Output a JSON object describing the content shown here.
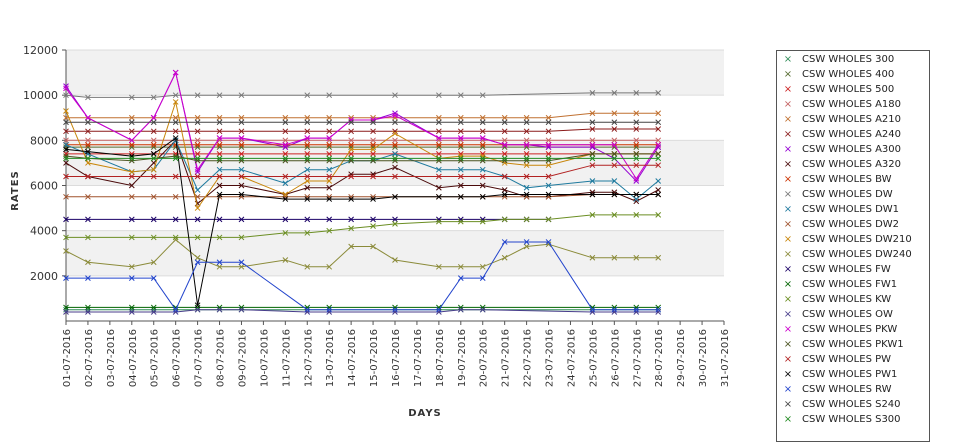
{
  "chart_data": {
    "type": "line",
    "xlabel": "DAYS",
    "ylabel": "RATES",
    "ylim": [
      0,
      12000
    ],
    "yticks": [
      2000,
      4000,
      6000,
      8000,
      10000,
      12000
    ],
    "categories": [
      "01-07-2016",
      "02-07-2016",
      "03-07-2016",
      "04-07-2016",
      "05-07-2016",
      "06-07-2016",
      "07-07-2016",
      "08-07-2016",
      "09-07-2016",
      "10-07-2016",
      "11-07-2016",
      "12-07-2016",
      "13-07-2016",
      "14-07-2016",
      "15-07-2016",
      "16-07-2016",
      "17-07-2016",
      "18-07-2016",
      "19-07-2016",
      "20-07-2016",
      "21-07-2016",
      "22-07-2016",
      "23-07-2016",
      "24-07-2016",
      "25-07-2016",
      "26-07-2016",
      "27-07-2016",
      "28-07-2016",
      "29-07-2016",
      "30-07-2016",
      "31-07-2016"
    ],
    "grid": "horizontal bands",
    "legend_position": "right",
    "series": [
      {
        "name": "CSW WHOLES 300",
        "color": "#2e8b57",
        "values": [
          500,
          500,
          null,
          500,
          500,
          500,
          500,
          500,
          500,
          null,
          null,
          500,
          500,
          null,
          null,
          500,
          null,
          500,
          500,
          500,
          null,
          null,
          null,
          null,
          500,
          500,
          500,
          500,
          null,
          null,
          null
        ]
      },
      {
        "name": "CSW WHOLES 400",
        "color": "#556b2f",
        "values": [
          7700,
          7700,
          null,
          7700,
          7700,
          7700,
          7700,
          7700,
          7700,
          null,
          7700,
          7700,
          7700,
          7700,
          7700,
          7700,
          null,
          7700,
          7700,
          7700,
          7700,
          7700,
          7700,
          null,
          7700,
          7700,
          7700,
          7700,
          null,
          null,
          null
        ]
      },
      {
        "name": "CSW WHOLES 500",
        "color": "#cc2222",
        "values": [
          7400,
          7400,
          null,
          7400,
          7400,
          7400,
          7400,
          7400,
          7400,
          null,
          7400,
          7400,
          7400,
          7400,
          7400,
          7400,
          null,
          7400,
          7400,
          7400,
          7400,
          7400,
          7400,
          null,
          7400,
          7400,
          7400,
          7400,
          null,
          null,
          null
        ]
      },
      {
        "name": "CSW WHOLES A180",
        "color": "#c46060",
        "values": [
          8000,
          8000,
          null,
          8000,
          8000,
          8000,
          8000,
          8000,
          8000,
          null,
          8000,
          8000,
          8000,
          8000,
          8000,
          8000,
          null,
          8000,
          8000,
          8000,
          8000,
          8000,
          8000,
          null,
          8000,
          8000,
          8000,
          8000,
          null,
          null,
          null
        ]
      },
      {
        "name": "CSW WHOLES A210",
        "color": "#c07030",
        "values": [
          9000,
          9000,
          null,
          9000,
          9000,
          9000,
          9000,
          9000,
          9000,
          null,
          9000,
          9000,
          9000,
          9000,
          9000,
          9000,
          null,
          9000,
          9000,
          9000,
          9000,
          9000,
          9000,
          null,
          9200,
          9200,
          9200,
          9200,
          null,
          null,
          null
        ]
      },
      {
        "name": "CSW WHOLES A240",
        "color": "#8b1a1a",
        "values": [
          8400,
          8400,
          null,
          8400,
          8400,
          8400,
          8400,
          8400,
          8400,
          null,
          8400,
          8400,
          8400,
          8400,
          8400,
          8400,
          null,
          8400,
          8400,
          8400,
          8400,
          8400,
          8400,
          null,
          8500,
          8500,
          8500,
          8500,
          null,
          null,
          null
        ]
      },
      {
        "name": "CSW WHOLES A300",
        "color": "#9400d3",
        "values": [
          10400,
          9000,
          null,
          8000,
          9000,
          11000,
          6600,
          8100,
          8100,
          null,
          7700,
          8100,
          8100,
          8900,
          8900,
          9200,
          null,
          8100,
          8100,
          8100,
          7800,
          7800,
          7700,
          null,
          7700,
          7200,
          6200,
          7700,
          null,
          null,
          null
        ]
      },
      {
        "name": "CSW WHOLES A320",
        "color": "#4a0a0a",
        "values": [
          7000,
          6400,
          null,
          6000,
          7000,
          8000,
          5200,
          6000,
          6000,
          null,
          5600,
          5900,
          5900,
          6500,
          6500,
          6800,
          null,
          5900,
          6000,
          6000,
          5800,
          5500,
          5500,
          null,
          5700,
          5700,
          5300,
          5800,
          null,
          null,
          null
        ]
      },
      {
        "name": "CSW WHOLES BW",
        "color": "#cc3300",
        "values": [
          7800,
          7800,
          null,
          7800,
          7800,
          7800,
          7800,
          7800,
          7800,
          null,
          7800,
          7800,
          7800,
          7800,
          7800,
          7800,
          null,
          7800,
          7800,
          7800,
          7800,
          7800,
          7800,
          null,
          7800,
          7800,
          7800,
          7800,
          null,
          null,
          null
        ]
      },
      {
        "name": "CSW WHOLES DW",
        "color": "#777777",
        "values": [
          10000,
          9900,
          null,
          9900,
          9900,
          10000,
          10000,
          10000,
          10000,
          null,
          null,
          10000,
          10000,
          null,
          null,
          10000,
          null,
          10000,
          10000,
          10000,
          null,
          null,
          null,
          null,
          10100,
          10100,
          10100,
          10100,
          null,
          null,
          null
        ]
      },
      {
        "name": "CSW WHOLES DW1",
        "color": "#1f7a9e",
        "values": [
          7800,
          7400,
          null,
          6600,
          6700,
          8000,
          5800,
          6700,
          6700,
          null,
          6100,
          6700,
          6700,
          7100,
          7100,
          7400,
          null,
          6700,
          6700,
          6700,
          6400,
          5900,
          6000,
          null,
          6200,
          6200,
          5400,
          6200,
          null,
          null,
          null
        ]
      },
      {
        "name": "CSW WHOLES DW2",
        "color": "#a0522d",
        "values": [
          5500,
          5500,
          null,
          5500,
          5500,
          5500,
          5500,
          5500,
          5500,
          null,
          5500,
          5500,
          5500,
          5500,
          5500,
          5500,
          null,
          5500,
          5500,
          5500,
          5500,
          5500,
          5500,
          null,
          5600,
          5600,
          5600,
          5600,
          null,
          null,
          null
        ]
      },
      {
        "name": "CSW WHOLES DW210",
        "color": "#c8860b",
        "values": [
          9300,
          7000,
          null,
          6600,
          6700,
          9700,
          5000,
          6400,
          6400,
          null,
          5600,
          6200,
          6200,
          7600,
          7600,
          8300,
          null,
          7200,
          7300,
          7300,
          7000,
          6900,
          6900,
          null,
          7400,
          7400,
          7400,
          7400,
          null,
          null,
          null
        ]
      },
      {
        "name": "CSW WHOLES DW240",
        "color": "#8b8b3a",
        "values": [
          3100,
          2600,
          null,
          2400,
          2600,
          3600,
          2800,
          2400,
          2400,
          null,
          2700,
          2400,
          2400,
          3300,
          3300,
          2700,
          null,
          2400,
          2400,
          2400,
          2800,
          3300,
          3400,
          null,
          2800,
          2800,
          2800,
          2800,
          null,
          null,
          null
        ]
      },
      {
        "name": "CSW WHOLES FW",
        "color": "#1a0066",
        "values": [
          4500,
          4500,
          null,
          4500,
          4500,
          4500,
          4500,
          4500,
          4500,
          null,
          4500,
          4500,
          4500,
          4500,
          4500,
          4500,
          null,
          4500,
          4500,
          4500,
          4500,
          4500,
          4500,
          null,
          null,
          null,
          null,
          null,
          null,
          null,
          null
        ]
      },
      {
        "name": "CSW WHOLES FW1",
        "color": "#006400",
        "values": [
          600,
          600,
          null,
          600,
          600,
          600,
          600,
          600,
          600,
          null,
          null,
          600,
          600,
          null,
          null,
          600,
          null,
          600,
          600,
          600,
          null,
          null,
          null,
          null,
          600,
          600,
          600,
          600,
          null,
          null,
          null
        ]
      },
      {
        "name": "CSW WHOLES KW",
        "color": "#6b8e23",
        "values": [
          3700,
          3700,
          null,
          3700,
          3700,
          3700,
          3700,
          3700,
          3700,
          null,
          3900,
          3900,
          4000,
          4100,
          4200,
          4300,
          null,
          4400,
          4400,
          4400,
          4500,
          4500,
          4500,
          null,
          4700,
          4700,
          4700,
          4700,
          null,
          null,
          null
        ]
      },
      {
        "name": "CSW WHOLES OW",
        "color": "#483d8b",
        "values": [
          400,
          400,
          null,
          400,
          400,
          400,
          500,
          500,
          500,
          null,
          null,
          400,
          400,
          null,
          null,
          400,
          null,
          400,
          500,
          500,
          null,
          null,
          null,
          null,
          400,
          400,
          400,
          400,
          null,
          null,
          null
        ]
      },
      {
        "name": "CSW WHOLES PKW",
        "color": "#cc00cc",
        "values": [
          10300,
          9000,
          null,
          8000,
          9000,
          11000,
          6700,
          8100,
          8100,
          null,
          7800,
          8100,
          8100,
          8900,
          8900,
          9100,
          null,
          8100,
          8100,
          8100,
          7800,
          7800,
          7800,
          null,
          7800,
          7800,
          6300,
          7800,
          null,
          null,
          null
        ]
      },
      {
        "name": "CSW WHOLES PKW1",
        "color": "#4b5320",
        "values": [
          7300,
          7200,
          null,
          7100,
          7200,
          7300,
          7100,
          7100,
          7100,
          null,
          7100,
          7100,
          7100,
          7100,
          7100,
          7100,
          null,
          7100,
          7100,
          7100,
          7100,
          7100,
          7100,
          null,
          7400,
          7400,
          7400,
          7400,
          null,
          null,
          null
        ]
      },
      {
        "name": "CSW WHOLES PW",
        "color": "#b22222",
        "values": [
          6400,
          6400,
          null,
          6400,
          6400,
          6400,
          6400,
          6400,
          6400,
          null,
          6400,
          6400,
          6400,
          6400,
          6400,
          6400,
          null,
          6400,
          6400,
          6400,
          6400,
          6400,
          6400,
          null,
          6900,
          6900,
          6900,
          6900,
          null,
          null,
          null
        ]
      },
      {
        "name": "CSW WHOLES PW1",
        "color": "#000000",
        "values": [
          7600,
          7500,
          null,
          7300,
          7400,
          8100,
          700,
          5600,
          5600,
          null,
          5400,
          5400,
          5400,
          5400,
          5400,
          5500,
          null,
          5500,
          5500,
          5500,
          5600,
          5600,
          5600,
          null,
          5600,
          5600,
          5600,
          5600,
          null,
          null,
          null
        ]
      },
      {
        "name": "CSW WHOLES RW",
        "color": "#2244cc",
        "values": [
          1900,
          1900,
          null,
          1900,
          1900,
          500,
          2600,
          2600,
          2600,
          null,
          null,
          500,
          500,
          null,
          null,
          500,
          null,
          500,
          1900,
          1900,
          3500,
          3500,
          3500,
          null,
          500,
          500,
          500,
          500,
          null,
          null,
          null
        ]
      },
      {
        "name": "CSW WHOLES S240",
        "color": "#444444",
        "values": [
          8800,
          8800,
          null,
          8800,
          8800,
          8800,
          8800,
          8800,
          8800,
          null,
          8800,
          8800,
          8800,
          8800,
          8800,
          8800,
          null,
          8800,
          8800,
          8800,
          8800,
          8800,
          8800,
          null,
          8800,
          8800,
          8800,
          8800,
          null,
          null,
          null
        ]
      },
      {
        "name": "CSW WHOLES S300",
        "color": "#228b22",
        "values": [
          7200,
          7200,
          null,
          7200,
          7200,
          7200,
          7200,
          7200,
          7200,
          null,
          7200,
          7200,
          7200,
          7200,
          7200,
          7200,
          null,
          7200,
          7200,
          7200,
          7200,
          7200,
          7200,
          null,
          7200,
          7200,
          7200,
          7200,
          null,
          null,
          null
        ]
      }
    ]
  }
}
